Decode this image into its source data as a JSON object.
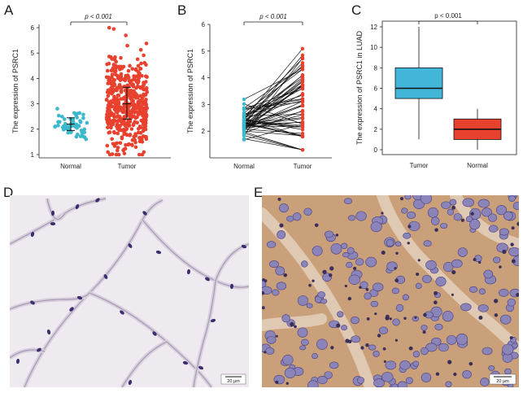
{
  "figure": {
    "panels": {
      "A": "A",
      "B": "B",
      "C": "C",
      "D": "D",
      "E": "E"
    },
    "scale_bar_d": "20 μm",
    "scale_bar_e": "20 μm"
  },
  "chart_data": [
    {
      "panel": "A",
      "type": "scatter",
      "categories": [
        "Normal",
        "Tumor"
      ],
      "ylabel": "The expression of PSRC1",
      "ylim": [
        1,
        6
      ],
      "yticks": [
        1,
        2,
        3,
        4,
        5,
        6
      ],
      "annotation": "p < 0.001",
      "series": [
        {
          "name": "Normal",
          "color": "#3cb8cc",
          "n": 58,
          "mean": 2.2,
          "sd": 0.3,
          "min": 1.3,
          "max": 3.4,
          "error_low": 1.95,
          "error_high": 2.45
        },
        {
          "name": "Tumor",
          "color": "#e8412e",
          "n": 510,
          "mean": 3.0,
          "sd": 0.9,
          "min": 1.0,
          "max": 6.0,
          "error_low": 2.4,
          "error_high": 3.65
        }
      ]
    },
    {
      "panel": "B",
      "type": "line",
      "categories": [
        "Normal",
        "Tumor"
      ],
      "ylabel": "The expression of PSRC1",
      "ylim": [
        1,
        6
      ],
      "yticks": [
        2,
        3,
        4,
        5,
        6
      ],
      "annotation": "p < 0.001",
      "pairs": 57,
      "normal_range": [
        1.2,
        3.4
      ],
      "tumor_range": [
        1.3,
        5.7
      ],
      "colors": {
        "Normal": "#3cb8cc",
        "Tumor": "#e8412e"
      }
    },
    {
      "panel": "C",
      "type": "box",
      "categories": [
        "Tumor",
        "Normal"
      ],
      "ylabel": "The expression of PSRC1 in LUAD",
      "ylim": [
        0,
        12
      ],
      "yticks": [
        0,
        2,
        4,
        6,
        8,
        10,
        12
      ],
      "annotation": "p < 0.001",
      "boxes": [
        {
          "name": "Tumor",
          "color": "#41b6d8",
          "whisker_low": 1,
          "q1": 5,
          "median": 6,
          "q3": 8,
          "whisker_high": 12
        },
        {
          "name": "Normal",
          "color": "#e8412e",
          "whisker_low": 0,
          "q1": 1,
          "median": 2,
          "q3": 3,
          "whisker_high": 4
        }
      ]
    }
  ]
}
